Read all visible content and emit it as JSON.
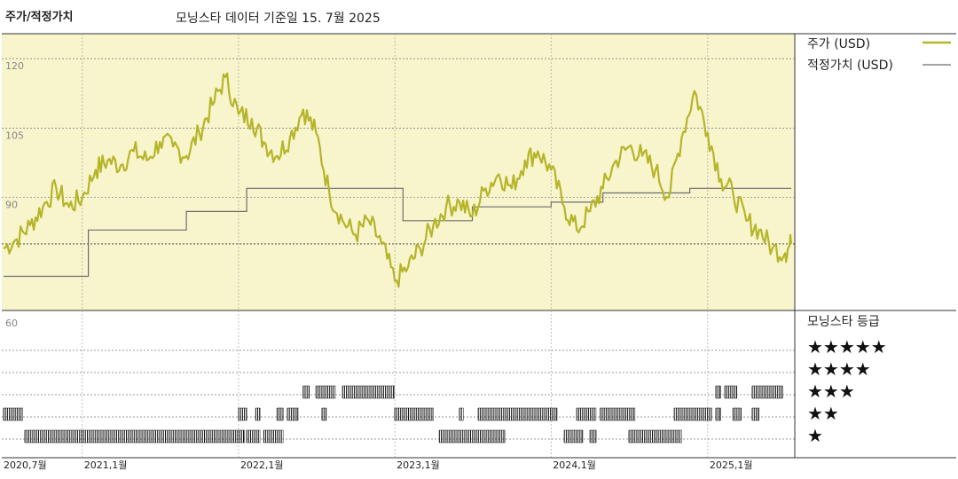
{
  "header": {
    "title": "주가/적정가치",
    "subtitle": "모닝스타 데이터 기준일 15. 7월 2025"
  },
  "legend": {
    "price_label": "주가 (USD)",
    "fair_value_label": "적정가치 (USD)",
    "rating_title": "모닝스타 등급",
    "star_rows": [
      "★★★★★",
      "★★★★",
      "★★★",
      "★★",
      "★"
    ]
  },
  "colors": {
    "price": "#b5b52a",
    "fair_value": "#6e6e6e",
    "upper_bg": "#f8f4cc",
    "grid": "#555555"
  },
  "chart_data": [
    {
      "type": "line",
      "title": "주가/적정가치",
      "ylim": [
        66,
        125
      ],
      "yticks": [
        120,
        105,
        90
      ],
      "xticks": [
        "2020,7월",
        "2021,1월",
        "2022,1월",
        "2023,1월",
        "2024,1월",
        "2025,1월"
      ],
      "x_range": [
        "2020-07-01",
        "2025-07-15"
      ],
      "series": [
        {
          "name": "주가 (USD)",
          "points": [
            [
              "2020-07-01",
              79
            ],
            [
              "2020-08-01",
              81
            ],
            [
              "2020-09-01",
              84
            ],
            [
              "2020-10-01",
              88
            ],
            [
              "2020-11-01",
              92
            ],
            [
              "2020-12-01",
              88
            ],
            [
              "2021-01-01",
              90
            ],
            [
              "2021-02-01",
              96
            ],
            [
              "2021-03-01",
              98
            ],
            [
              "2021-04-01",
              97
            ],
            [
              "2021-05-01",
              100
            ],
            [
              "2021-06-01",
              98
            ],
            [
              "2021-07-01",
              102
            ],
            [
              "2021-08-01",
              101
            ],
            [
              "2021-09-01",
              99
            ],
            [
              "2021-10-01",
              104
            ],
            [
              "2021-11-01",
              110
            ],
            [
              "2021-12-01",
              116
            ],
            [
              "2022-01-01",
              108
            ],
            [
              "2022-02-01",
              107
            ],
            [
              "2022-03-01",
              102
            ],
            [
              "2022-04-01",
              99
            ],
            [
              "2022-05-01",
              103
            ],
            [
              "2022-06-01",
              109
            ],
            [
              "2022-07-01",
              104
            ],
            [
              "2022-08-01",
              91
            ],
            [
              "2022-09-01",
              85
            ],
            [
              "2022-10-01",
              82
            ],
            [
              "2022-11-01",
              85
            ],
            [
              "2022-12-01",
              80
            ],
            [
              "2023-01-01",
              72
            ],
            [
              "2023-02-01",
              75
            ],
            [
              "2023-03-01",
              79
            ],
            [
              "2023-04-01",
              84
            ],
            [
              "2023-05-01",
              88
            ],
            [
              "2023-06-01",
              89
            ],
            [
              "2023-07-01",
              86
            ],
            [
              "2023-08-01",
              92
            ],
            [
              "2023-09-01",
              95
            ],
            [
              "2023-10-01",
              92
            ],
            [
              "2023-11-01",
              98
            ],
            [
              "2023-12-01",
              100
            ],
            [
              "2024-01-01",
              96
            ],
            [
              "2024-02-01",
              88
            ],
            [
              "2024-03-01",
              83
            ],
            [
              "2024-04-01",
              87
            ],
            [
              "2024-05-01",
              92
            ],
            [
              "2024-06-01",
              98
            ],
            [
              "2024-07-01",
              101
            ],
            [
              "2024-08-01",
              99
            ],
            [
              "2024-09-01",
              96
            ],
            [
              "2024-10-01",
              90
            ],
            [
              "2024-11-01",
              103
            ],
            [
              "2024-12-01",
              113
            ],
            [
              "2025-01-01",
              104
            ],
            [
              "2025-02-01",
              94
            ],
            [
              "2025-03-01",
              91
            ],
            [
              "2025-04-01",
              85
            ],
            [
              "2025-05-01",
              83
            ],
            [
              "2025-06-01",
              79
            ],
            [
              "2025-07-01",
              78
            ],
            [
              "2025-07-15",
              80
            ]
          ]
        },
        {
          "name": "적정가치 (USD)",
          "points": [
            [
              "2020-07-01",
              73
            ],
            [
              "2021-01-15",
              73
            ],
            [
              "2021-01-15",
              83
            ],
            [
              "2021-09-01",
              83
            ],
            [
              "2021-09-01",
              87
            ],
            [
              "2022-01-20",
              87
            ],
            [
              "2022-01-20",
              92
            ],
            [
              "2023-01-20",
              92
            ],
            [
              "2023-01-20",
              85
            ],
            [
              "2023-07-01",
              85
            ],
            [
              "2023-07-01",
              88
            ],
            [
              "2024-01-01",
              88
            ],
            [
              "2024-01-01",
              89
            ],
            [
              "2024-05-01",
              89
            ],
            [
              "2024-05-01",
              91
            ],
            [
              "2024-11-20",
              91
            ],
            [
              "2024-11-20",
              92
            ],
            [
              "2025-07-15",
              92
            ]
          ]
        }
      ]
    },
    {
      "type": "bar",
      "title": "모닝스타 등급",
      "ylabel": "60",
      "categories": [
        "★★★★★",
        "★★★★",
        "★★★",
        "★★",
        "★"
      ],
      "series": [
        {
          "name": "★★★★",
          "ranges": [
            [
              "2022-06-01",
              "2022-06-15"
            ],
            [
              "2022-07-01",
              "2022-08-15"
            ],
            [
              "2022-09-01",
              "2022-12-31"
            ],
            [
              "2025-01-20",
              "2025-01-31"
            ],
            [
              "2025-02-10",
              "2025-03-10"
            ],
            [
              "2025-04-15",
              "2025-06-25"
            ]
          ]
        },
        {
          "name": "★★★",
          "ranges": [
            [
              "2020-07-01",
              "2020-08-15"
            ],
            [
              "2022-01-01",
              "2022-01-20"
            ],
            [
              "2022-02-10",
              "2022-02-20"
            ],
            [
              "2022-04-01",
              "2022-04-15"
            ],
            [
              "2022-04-25",
              "2022-05-20"
            ],
            [
              "2022-07-15",
              "2022-07-25"
            ],
            [
              "2023-01-01",
              "2023-04-01"
            ],
            [
              "2023-06-01",
              "2023-06-10"
            ],
            [
              "2023-07-15",
              "2024-01-15"
            ],
            [
              "2024-03-01",
              "2024-04-15"
            ],
            [
              "2024-04-25",
              "2024-07-15"
            ],
            [
              "2024-10-15",
              "2025-01-10"
            ],
            [
              "2025-01-20",
              "2025-01-31"
            ],
            [
              "2025-03-01",
              "2025-03-20"
            ],
            [
              "2025-04-15",
              "2025-05-01"
            ]
          ]
        },
        {
          "name": "★★",
          "ranges": [
            [
              "2020-08-20",
              "2022-01-15"
            ],
            [
              "2022-01-20",
              "2022-02-20"
            ],
            [
              "2022-03-01",
              "2022-04-15"
            ],
            [
              "2023-04-15",
              "2023-09-15"
            ],
            [
              "2024-02-01",
              "2024-03-15"
            ],
            [
              "2024-04-01",
              "2024-04-15"
            ],
            [
              "2024-07-01",
              "2024-11-01"
            ]
          ]
        },
        {
          "name": "★",
          "ranges": []
        }
      ]
    }
  ]
}
